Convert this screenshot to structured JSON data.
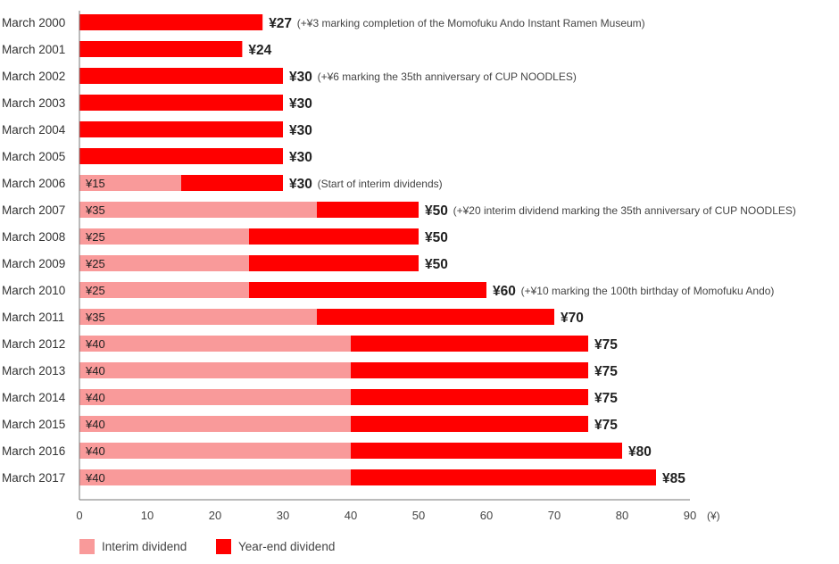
{
  "chart_data": {
    "type": "bar",
    "stacked": true,
    "orientation": "horizontal",
    "categories": [
      "March 2000",
      "March 2001",
      "March 2002",
      "March 2003",
      "March 2004",
      "March 2005",
      "March 2006",
      "March 2007",
      "March 2008",
      "March 2009",
      "March 2010",
      "March 2011",
      "March 2012",
      "March 2013",
      "March 2014",
      "March 2015",
      "March 2016",
      "March 2017"
    ],
    "series": [
      {
        "name": "Interim dividend",
        "color": "#f99a9a",
        "values": [
          0,
          0,
          0,
          0,
          0,
          0,
          15,
          35,
          25,
          25,
          25,
          35,
          40,
          40,
          40,
          40,
          40,
          40
        ]
      },
      {
        "name": "Year-end dividend",
        "color": "#ff0000",
        "values": [
          27,
          24,
          30,
          30,
          30,
          30,
          15,
          15,
          25,
          25,
          35,
          35,
          35,
          35,
          35,
          35,
          40,
          45
        ]
      }
    ],
    "interim_labels": [
      "",
      "",
      "",
      "",
      "",
      "",
      "¥15",
      "¥35",
      "¥25",
      "¥25",
      "¥25",
      "¥35",
      "¥40",
      "¥40",
      "¥40",
      "¥40",
      "¥40",
      "¥40"
    ],
    "total_labels": [
      "¥27",
      "¥24",
      "¥30",
      "¥30",
      "¥30",
      "¥30",
      "¥30",
      "¥50",
      "¥50",
      "¥50",
      "¥60",
      "¥70",
      "¥75",
      "¥75",
      "¥75",
      "¥75",
      "¥80",
      "¥85"
    ],
    "annotations": [
      "(+¥3 marking completion of the Momofuku Ando Instant Ramen Museum)",
      "",
      "(+¥6 marking the 35th anniversary of CUP NOODLES)",
      "",
      "",
      "",
      "(Start of interim dividends)",
      "(+¥20 interim dividend marking the 35th anniversary of CUP NOODLES)",
      "",
      "",
      "(+¥10 marking the 100th birthday of Momofuku Ando)",
      "",
      "",
      "",
      "",
      "",
      "",
      ""
    ],
    "x_ticks": [
      "0",
      "10",
      "20",
      "30",
      "40",
      "50",
      "60",
      "70",
      "80",
      "90"
    ],
    "x_unit": "(¥)",
    "xlim": [
      0,
      90
    ],
    "grid": false,
    "legend_position": "bottom-left"
  }
}
